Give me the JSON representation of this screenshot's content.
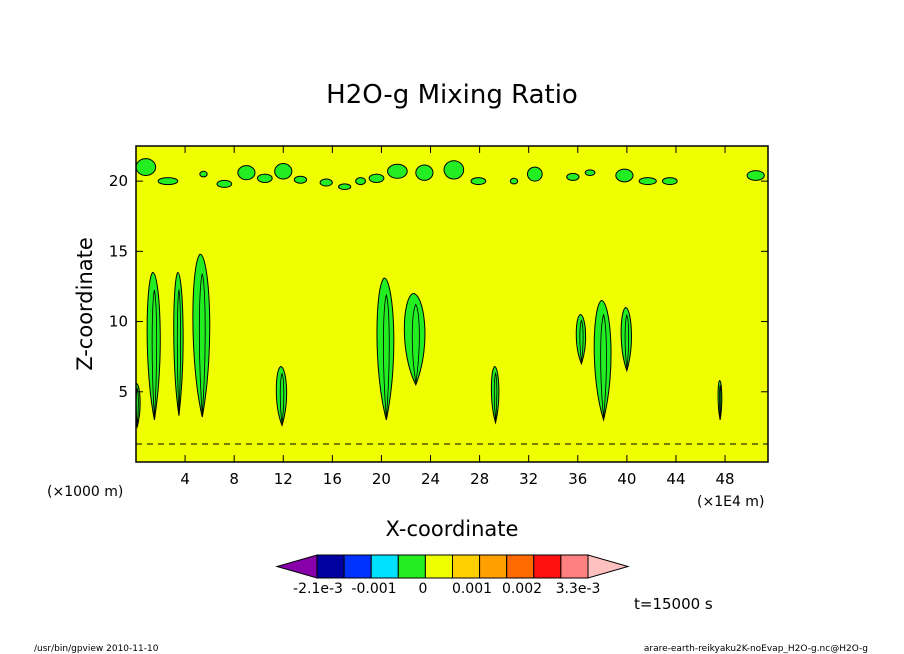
{
  "chart_data": {
    "type": "heatmap",
    "title": "H2O-g Mixing Ratio",
    "xlabel": "X-coordinate",
    "ylabel": "Z-coordinate",
    "x_unit_left": "(×1000 m)",
    "x_unit_right": "(×1E4 m)",
    "xlim": [
      0,
      51.5
    ],
    "ylim": [
      0,
      22.5
    ],
    "x_ticks": [
      4,
      8,
      12,
      16,
      20,
      24,
      28,
      32,
      36,
      40,
      44,
      48
    ],
    "y_ticks": [
      5,
      10,
      15,
      20
    ],
    "background_level_color": "#f0ff00",
    "anomaly_color": "#22ee22",
    "upper_band_blobs": [
      {
        "x": 0.8,
        "z": 21.0,
        "w": 1.6,
        "h": 1.2
      },
      {
        "x": 2.6,
        "z": 20.0,
        "w": 1.6,
        "h": 0.5
      },
      {
        "x": 5.5,
        "z": 20.5,
        "w": 0.6,
        "h": 0.4
      },
      {
        "x": 7.2,
        "z": 19.8,
        "w": 1.2,
        "h": 0.5
      },
      {
        "x": 9.0,
        "z": 20.6,
        "w": 1.4,
        "h": 1.0
      },
      {
        "x": 10.5,
        "z": 20.2,
        "w": 1.2,
        "h": 0.6
      },
      {
        "x": 12.0,
        "z": 20.7,
        "w": 1.4,
        "h": 1.1
      },
      {
        "x": 13.4,
        "z": 20.1,
        "w": 1.0,
        "h": 0.5
      },
      {
        "x": 15.5,
        "z": 19.9,
        "w": 1.0,
        "h": 0.5
      },
      {
        "x": 17.0,
        "z": 19.6,
        "w": 1.0,
        "h": 0.4
      },
      {
        "x": 18.3,
        "z": 20.0,
        "w": 0.8,
        "h": 0.5
      },
      {
        "x": 19.6,
        "z": 20.2,
        "w": 1.2,
        "h": 0.6
      },
      {
        "x": 21.3,
        "z": 20.7,
        "w": 1.6,
        "h": 1.0
      },
      {
        "x": 23.5,
        "z": 20.6,
        "w": 1.4,
        "h": 1.1
      },
      {
        "x": 25.9,
        "z": 20.8,
        "w": 1.6,
        "h": 1.3
      },
      {
        "x": 27.9,
        "z": 20.0,
        "w": 1.2,
        "h": 0.5
      },
      {
        "x": 30.8,
        "z": 20.0,
        "w": 0.6,
        "h": 0.4
      },
      {
        "x": 32.5,
        "z": 20.5,
        "w": 1.2,
        "h": 1.0
      },
      {
        "x": 35.6,
        "z": 20.3,
        "w": 1.0,
        "h": 0.5
      },
      {
        "x": 37.0,
        "z": 20.6,
        "w": 0.8,
        "h": 0.4
      },
      {
        "x": 39.8,
        "z": 20.4,
        "w": 1.4,
        "h": 0.9
      },
      {
        "x": 41.7,
        "z": 20.0,
        "w": 1.4,
        "h": 0.5
      },
      {
        "x": 43.5,
        "z": 20.0,
        "w": 1.2,
        "h": 0.5
      },
      {
        "x": 50.5,
        "z": 20.4,
        "w": 1.4,
        "h": 0.7
      }
    ],
    "plumes": [
      {
        "x": 1.5,
        "base": 3.0,
        "top": 13.5,
        "w": 1.4
      },
      {
        "x": 3.5,
        "base": 3.3,
        "top": 13.5,
        "w": 1.0
      },
      {
        "x": 5.4,
        "base": 3.2,
        "top": 14.8,
        "w": 1.8
      },
      {
        "x": 0.1,
        "base": 2.5,
        "top": 5.6,
        "w": 0.7
      },
      {
        "x": 11.9,
        "base": 2.6,
        "top": 6.8,
        "w": 1.1
      },
      {
        "x": 20.4,
        "base": 3.0,
        "top": 13.1,
        "w": 1.8
      },
      {
        "x": 22.8,
        "base": 5.5,
        "top": 12.0,
        "w": 2.2
      },
      {
        "x": 29.3,
        "base": 2.8,
        "top": 6.8,
        "w": 0.8
      },
      {
        "x": 36.3,
        "base": 7.0,
        "top": 10.5,
        "w": 1.0
      },
      {
        "x": 38.1,
        "base": 3.0,
        "top": 11.5,
        "w": 1.8
      },
      {
        "x": 40.0,
        "base": 6.5,
        "top": 11.0,
        "w": 1.1
      },
      {
        "x": 47.6,
        "base": 3.0,
        "top": 5.8,
        "w": 0.4
      }
    ],
    "colorbar": {
      "colors": [
        "#8800aa",
        "#0000a0",
        "#0033ff",
        "#00e0ff",
        "#22ee22",
        "#f0ff00",
        "#ffd000",
        "#ffa000",
        "#ff6a00",
        "#ff1010",
        "#ff8080",
        "#ffc0c0"
      ],
      "labels": [
        "-2.1e-3",
        "-0.001",
        "0",
        "0.001",
        "0.002",
        "3.3e-3"
      ]
    },
    "time_label": "t=15000 s"
  },
  "footer": {
    "left": "/usr/bin/gpview   2010-11-10",
    "right": "arare-earth-reikyaku2K-noEvap_H2O-g.nc@H2O-g"
  }
}
